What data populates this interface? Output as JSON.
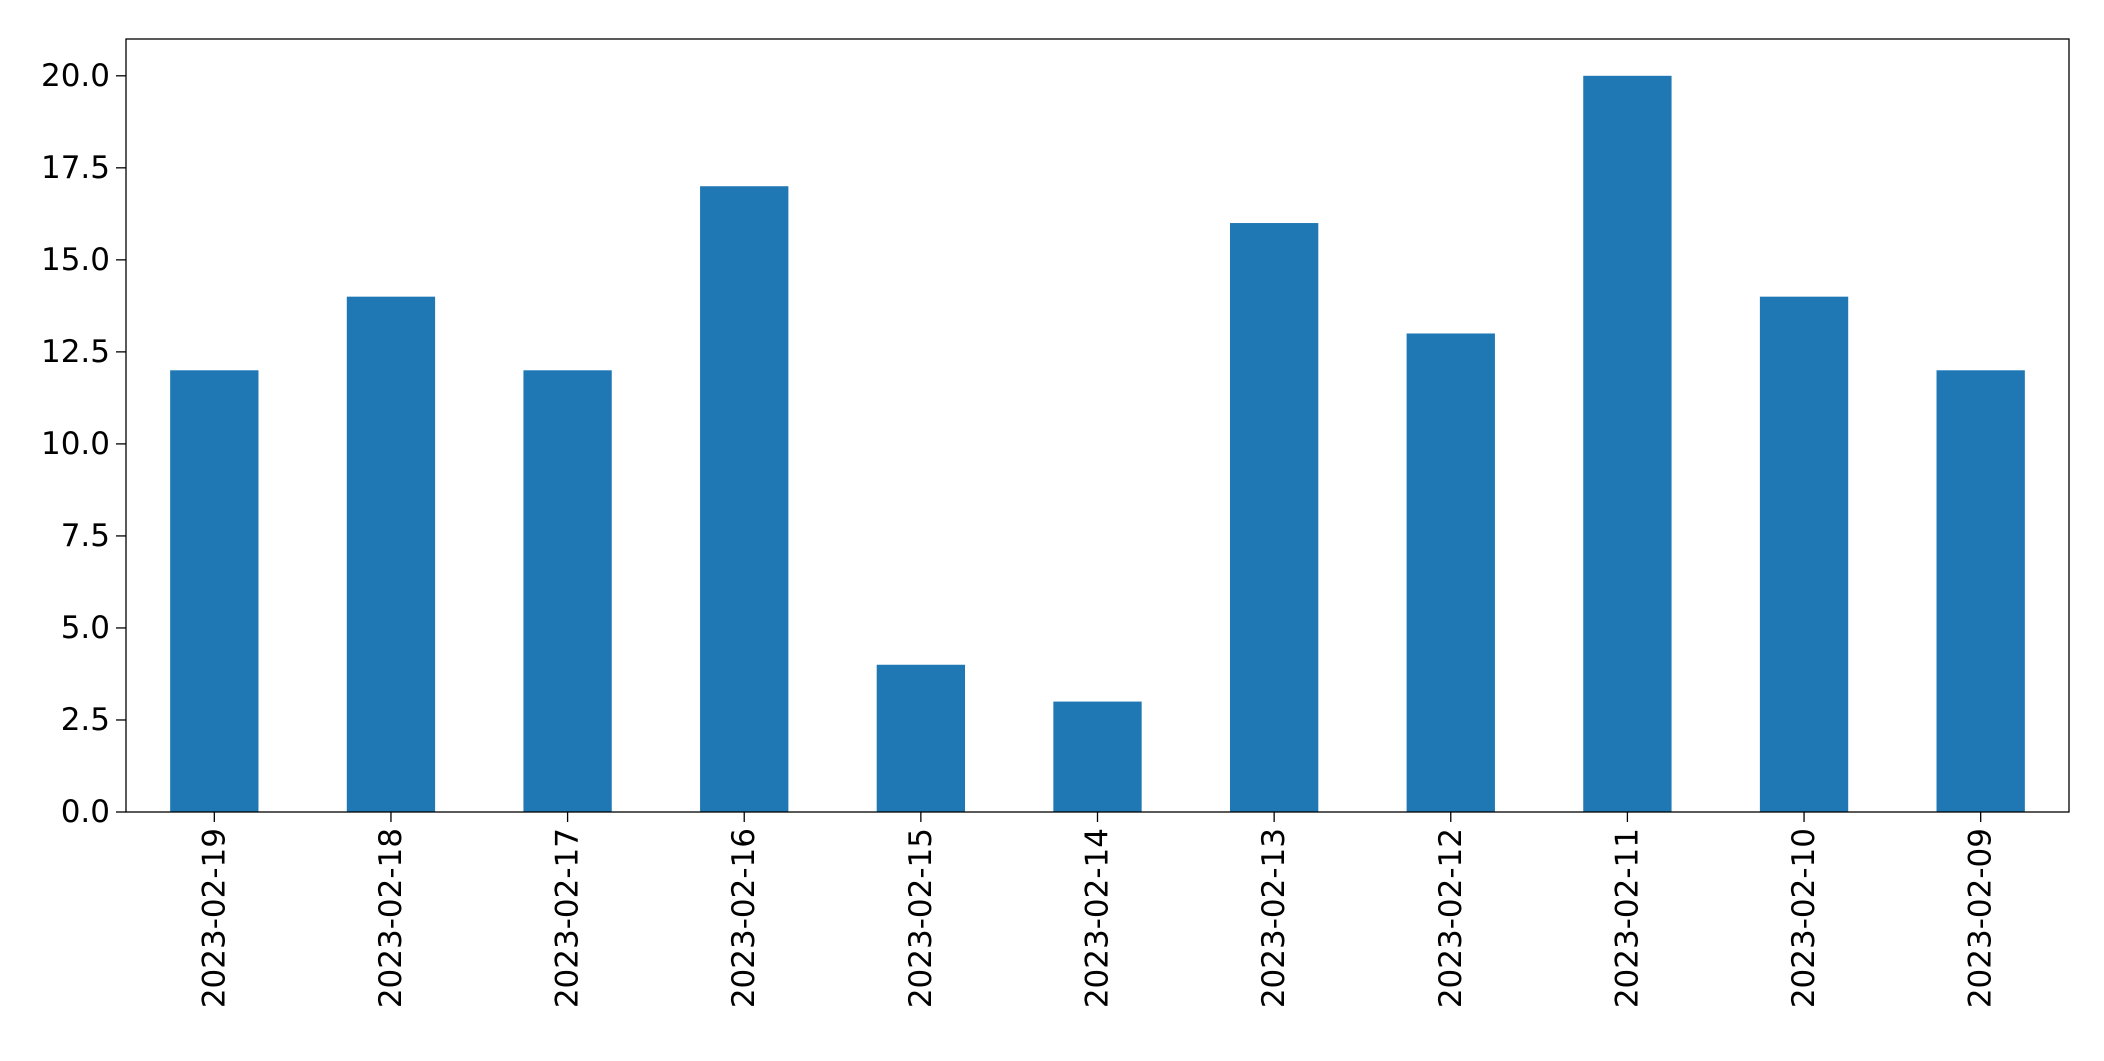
{
  "colors": {
    "bar": "#1f77b4",
    "axes": "#000000",
    "background": "#ffffff"
  },
  "chart_data": {
    "type": "bar",
    "title": "",
    "xlabel": "",
    "ylabel": "",
    "categories": [
      "2023-02-19",
      "2023-02-18",
      "2023-02-17",
      "2023-02-16",
      "2023-02-15",
      "2023-02-14",
      "2023-02-13",
      "2023-02-12",
      "2023-02-11",
      "2023-02-10",
      "2023-02-09"
    ],
    "values": [
      12,
      14,
      12,
      17,
      4,
      3,
      16,
      13,
      20,
      14,
      12
    ],
    "ylim": [
      0,
      21
    ],
    "yticks": [
      "0.0",
      "2.5",
      "5.0",
      "7.5",
      "10.0",
      "12.5",
      "15.0",
      "17.5",
      "20.0"
    ],
    "grid": false,
    "legend": "none",
    "x_tick_rotation": "vertical"
  }
}
